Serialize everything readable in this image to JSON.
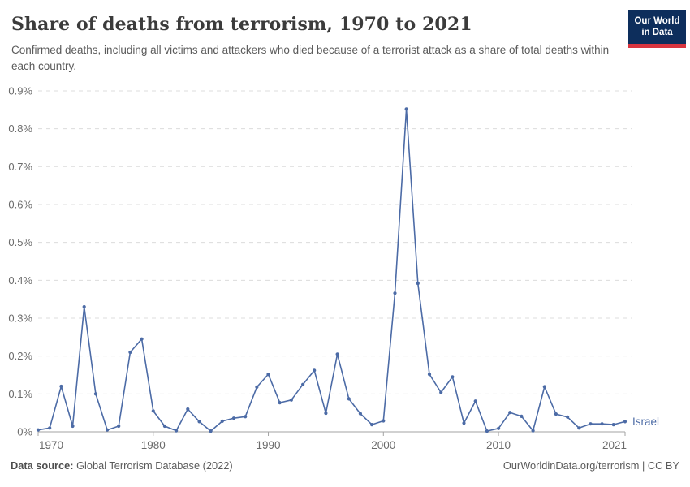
{
  "header": {
    "title": "Share of deaths from terrorism, 1970 to 2021",
    "subtitle": "Confirmed deaths, including all victims and attackers who died because of a terrorist attack as a share of total deaths within each country.",
    "logo": {
      "line1": "Our World",
      "line2": "in Data"
    }
  },
  "chart_data": {
    "type": "line",
    "title": "Share of deaths from terrorism, 1970 to 2021",
    "xlabel": "",
    "ylabel": "",
    "unit": "%",
    "grid": "horizontal dashed",
    "legend_position": "end-of-line entity label",
    "xlim": [
      1970,
      2021
    ],
    "ylim": [
      0,
      0.9
    ],
    "x_ticks": [
      "1970",
      "1980",
      "1990",
      "2000",
      "2010",
      "2021"
    ],
    "x_tick_values": [
      1970,
      1980,
      1990,
      2000,
      2010,
      2021
    ],
    "y_ticks": [
      "0%",
      "0.1%",
      "0.2%",
      "0.3%",
      "0.4%",
      "0.5%",
      "0.6%",
      "0.7%",
      "0.8%",
      "0.9%"
    ],
    "y_tick_values": [
      0,
      0.1,
      0.2,
      0.3,
      0.4,
      0.5,
      0.6,
      0.7,
      0.8,
      0.9
    ],
    "x": [
      1970,
      1971,
      1972,
      1973,
      1974,
      1975,
      1976,
      1977,
      1978,
      1979,
      1980,
      1981,
      1982,
      1983,
      1984,
      1985,
      1986,
      1987,
      1988,
      1989,
      1990,
      1991,
      1992,
      1993,
      1994,
      1995,
      1996,
      1997,
      1998,
      1999,
      2000,
      2001,
      2002,
      2003,
      2004,
      2005,
      2006,
      2007,
      2008,
      2009,
      2010,
      2011,
      2012,
      2013,
      2014,
      2015,
      2016,
      2017,
      2018,
      2019,
      2020,
      2021
    ],
    "series": [
      {
        "name": "Israel",
        "color": "#4c6ba6",
        "values": [
          0.005,
          0.01,
          0.12,
          0.015,
          0.33,
          0.1,
          0.005,
          0.015,
          0.21,
          0.245,
          0.055,
          0.015,
          0.003,
          0.06,
          0.027,
          0.002,
          0.028,
          0.036,
          0.04,
          0.118,
          0.152,
          0.077,
          0.084,
          0.125,
          0.162,
          0.049,
          0.205,
          0.087,
          0.048,
          0.019,
          0.029,
          0.366,
          0.852,
          0.392,
          0.152,
          0.104,
          0.145,
          0.023,
          0.081,
          0.002,
          0.009,
          0.051,
          0.041,
          0.003,
          0.119,
          0.047,
          0.039,
          0.01,
          0.021,
          0.021,
          0.019,
          0.027
        ]
      }
    ]
  },
  "footer": {
    "source_label": "Data source:",
    "source_text": " Global Terrorism Database (2022)",
    "credit": "OurWorldinData.org/terrorism | CC BY"
  },
  "colors": {
    "line": "#4c6ba6",
    "logo_bg": "#0d2e5c",
    "logo_red": "#d8353f",
    "gridline": "#dcdcdc",
    "axis": "#a3a3a3",
    "tick_label": "#6b6b6b",
    "title_text": "#3b3b3b",
    "subtitle_text": "#5b5b5b"
  }
}
